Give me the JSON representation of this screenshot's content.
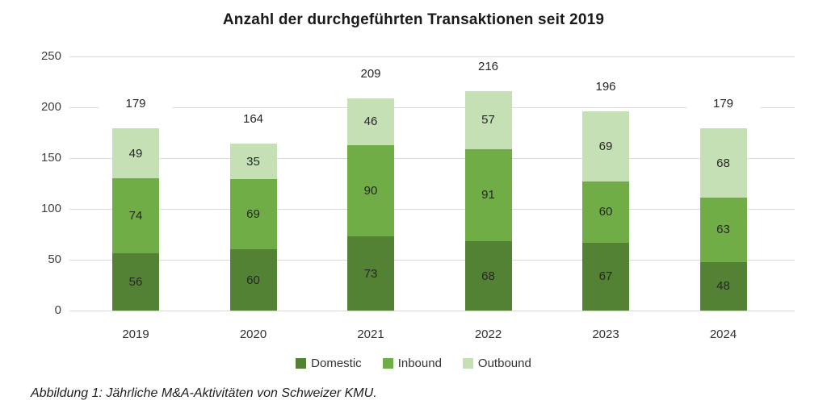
{
  "title": "Anzahl der durchgeführten Transaktionen seit 2019",
  "caption": "Abbildung 1: Jährliche M&A-Aktivitäten von Schweizer KMU.",
  "colors": {
    "domestic": "#548235",
    "inbound": "#70AD47",
    "outbound": "#C5E0B4",
    "gridline": "#d9d9d9",
    "title_text": "#1a1a1a",
    "label_text": "#262626",
    "axis_text": "#404040"
  },
  "chart_data": {
    "type": "bar",
    "stacked": true,
    "title": "Anzahl der durchgeführten Transaktionen seit 2019",
    "categories": [
      "2019",
      "2020",
      "2021",
      "2022",
      "2023",
      "2024"
    ],
    "series": [
      {
        "name": "Domestic",
        "color": "#548235",
        "values": [
          56,
          60,
          73,
          68,
          67,
          48
        ]
      },
      {
        "name": "Inbound",
        "color": "#70AD47",
        "values": [
          74,
          69,
          90,
          91,
          60,
          63
        ]
      },
      {
        "name": "Outbound",
        "color": "#C5E0B4",
        "values": [
          49,
          35,
          46,
          57,
          69,
          68
        ]
      }
    ],
    "totals": [
      179,
      164,
      209,
      216,
      196,
      179
    ],
    "y_ticks": [
      0,
      50,
      100,
      150,
      200,
      250
    ],
    "ylim": [
      0,
      250
    ],
    "xlabel": "",
    "ylabel": "",
    "grid": true,
    "legend_position": "bottom"
  }
}
